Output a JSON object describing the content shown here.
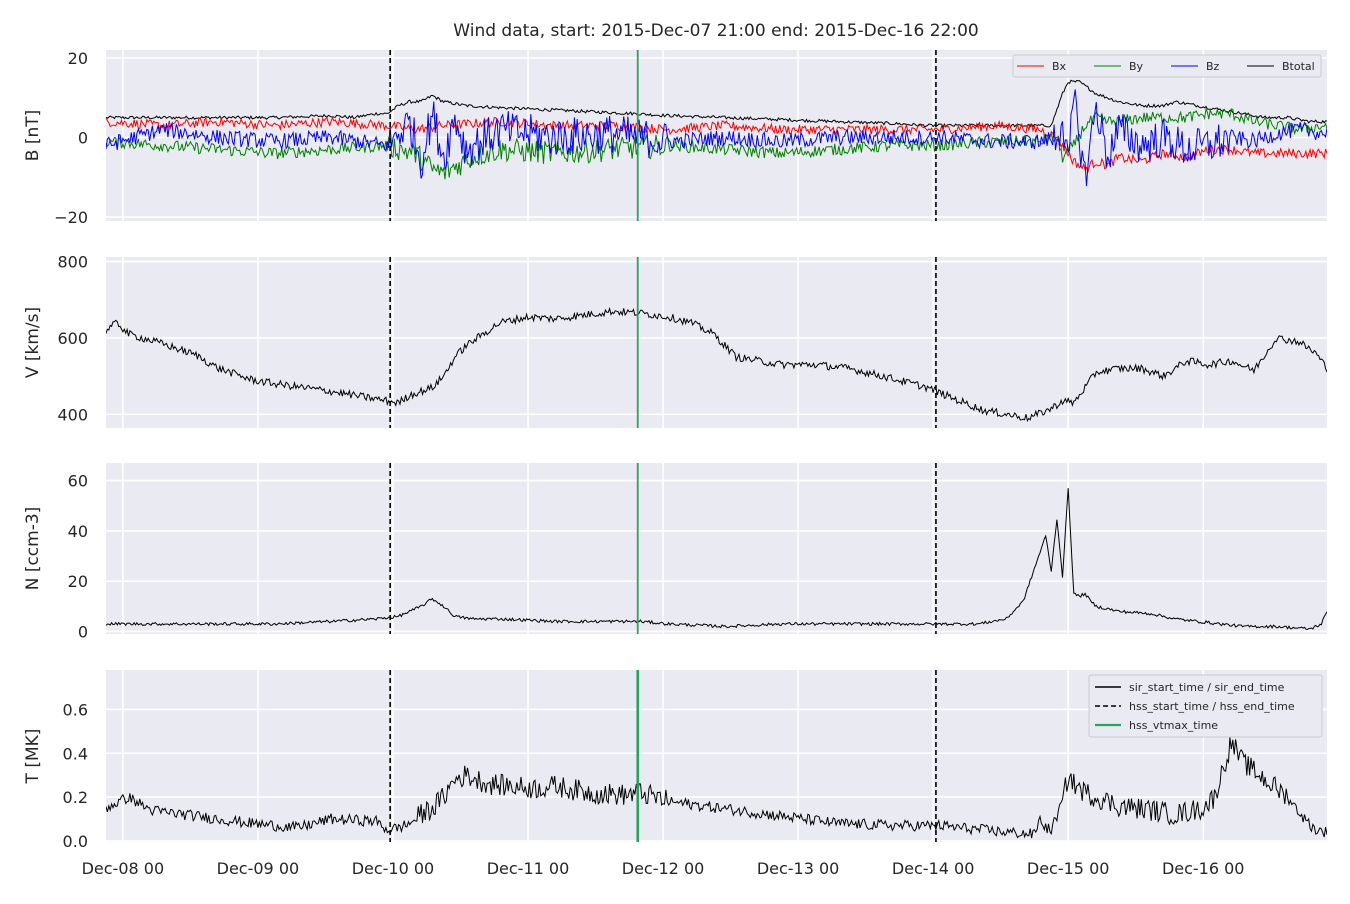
{
  "title": "Wind data, start: 2015-Dec-07 21:00  end: 2015-Dec-16 22:00",
  "colors": {
    "background": "#eaeaf2",
    "grid": "#ffffff",
    "bx": "#ff0000",
    "by": "#008000",
    "bz": "#0000ff",
    "btotal": "#000000",
    "hss_vtmax": "#2ca25f"
  },
  "chart_data": {
    "type": "line",
    "x_unit": "hours since Dec-07 21:00",
    "x_range_hours": [
      0,
      217
    ],
    "x_tick_labels": [
      "Dec-08 00",
      "Dec-09 00",
      "Dec-10 00",
      "Dec-11 00",
      "Dec-12 00",
      "Dec-13 00",
      "Dec-14 00",
      "Dec-15 00",
      "Dec-16 00"
    ],
    "x_tick_hours": [
      3,
      27,
      51,
      75,
      99,
      123,
      147,
      171,
      195
    ],
    "event_markers": {
      "hss_start_hour": 50.5,
      "hss_end_hour": 147.5,
      "hss_vtmax_hour": 94.5
    },
    "legend_lines": {
      "sir": "sir_start_time / sir_end_time",
      "hss": "hss_start_time / hss_end_time",
      "vtmax": "hss_vtmax_time"
    },
    "panels": [
      {
        "id": "B",
        "ylabel": "B [nT]",
        "ylim": [
          -21,
          22
        ],
        "yticks": [
          20,
          0,
          -20
        ],
        "ytick_labels": [
          "20",
          "0",
          "−20"
        ],
        "legend": [
          "Bx",
          "By",
          "Bz",
          "Btotal"
        ],
        "series": [
          {
            "name": "Btotal",
            "x": [
              0,
              10,
              20,
              30,
              40,
              44,
              48,
              50,
              52,
              54,
              56,
              58,
              60,
              64,
              70,
              78,
              86,
              94,
              100,
              110,
              120,
              130,
              140,
              146,
              150,
              160,
              168,
              170,
              171,
              172,
              173,
              174,
              175,
              176,
              178,
              180,
              184,
              188,
              190,
              194,
              198,
              202,
              206,
              210,
              214,
              217
            ],
            "y": [
              5,
              5,
              5,
              5,
              5.5,
              5,
              6,
              6,
              8,
              9,
              9,
              10.5,
              9,
              8,
              7.5,
              7,
              6.5,
              6,
              5.5,
              5,
              4.5,
              4,
              3.5,
              3,
              3,
              3,
              3,
              11,
              14,
              14,
              14,
              13,
              12,
              11,
              10,
              9,
              8,
              8,
              9,
              8,
              7,
              6,
              5,
              5,
              4,
              4
            ]
          },
          {
            "name": "Bx",
            "x": [
              0,
              10,
              20,
              30,
              40,
              50,
              55,
              60,
              70,
              80,
              90,
              100,
              110,
              120,
              130,
              140,
              148,
              158,
              166,
              169,
              170,
              172,
              174,
              176,
              178,
              180,
              184,
              188,
              192,
              196,
              200,
              204,
              208,
              212,
              217
            ],
            "y": [
              4,
              3,
              4,
              3,
              4,
              3,
              2,
              3,
              4,
              3,
              3,
              2,
              3,
              2,
              2,
              2,
              2,
              3,
              2,
              0,
              -2,
              -6,
              -8,
              -6,
              -7,
              -5,
              -6,
              -4,
              -5,
              -3,
              -3,
              -4,
              -4,
              -4,
              -4
            ]
          },
          {
            "name": "By",
            "x": [
              0,
              10,
              20,
              30,
              40,
              50,
              55,
              58,
              60,
              65,
              70,
              80,
              90,
              100,
              110,
              120,
              130,
              140,
              148,
              158,
              166,
              169,
              170,
              172,
              174,
              176,
              178,
              180,
              184,
              188,
              192,
              196,
              200,
              204,
              208,
              212,
              217
            ],
            "y": [
              -1,
              -2,
              -3,
              -4,
              -3,
              -2,
              -4,
              -8,
              -9,
              -5,
              -3,
              -4,
              -3,
              -2,
              -3,
              -4,
              -3,
              -2,
              -2,
              -1,
              -1,
              0,
              -5,
              -2,
              3,
              5,
              4,
              4,
              5,
              5,
              5,
              6,
              6,
              4,
              3,
              2,
              3
            ]
          },
          {
            "name": "Bz",
            "x": [
              0,
              10,
              20,
              30,
              40,
              50,
              54,
              56,
              58,
              60,
              62,
              64,
              70,
              80,
              90,
              100,
              110,
              120,
              130,
              140,
              148,
              158,
              166,
              169,
              170,
              171,
              172,
              174,
              176,
              178,
              180,
              184,
              188,
              192,
              196,
              200,
              204,
              208,
              212,
              217
            ],
            "y": [
              -2,
              2,
              0,
              -1,
              0,
              -2,
              4,
              -6,
              6,
              -5,
              5,
              -3,
              2,
              0,
              1,
              -1,
              0,
              -1,
              0,
              0,
              0,
              -1,
              -1,
              0,
              5,
              -8,
              10,
              -10,
              8,
              -5,
              2,
              -2,
              0,
              -3,
              -2,
              0,
              -1,
              1,
              2,
              1
            ]
          }
        ]
      },
      {
        "id": "V",
        "ylabel": "V [km/s]",
        "ylim": [
          364,
          812
        ],
        "yticks": [
          800,
          600,
          400
        ],
        "ytick_labels": [
          "800",
          "600",
          "400"
        ],
        "series": [
          {
            "name": "V",
            "x": [
              0,
              2,
              4,
              10,
              16,
              20,
              26,
              30,
              40,
              48,
              52,
              54,
              58,
              60,
              62,
              64,
              66,
              70,
              75,
              80,
              85,
              90,
              95,
              100,
              104,
              108,
              112,
              120,
              126,
              132,
              138,
              146,
              150,
              156,
              162,
              164,
              168,
              170,
              172,
              176,
              180,
              184,
              188,
              192,
              196,
              200,
              204,
              208,
              212,
              215,
              217
            ],
            "y": [
              620,
              640,
              610,
              585,
              555,
              520,
              490,
              480,
              460,
              440,
              430,
              450,
              470,
              500,
              550,
              580,
              600,
              640,
              655,
              650,
              660,
              670,
              665,
              655,
              640,
              610,
              550,
              530,
              530,
              520,
              500,
              470,
              445,
              410,
              395,
              390,
              415,
              435,
              430,
              510,
              520,
              520,
              500,
              540,
              530,
              540,
              515,
              600,
              590,
              560,
              520
            ]
          }
        ]
      },
      {
        "id": "N",
        "ylabel": "N [ccm-3]",
        "ylim": [
          -1,
          67
        ],
        "yticks": [
          60,
          40,
          20,
          0
        ],
        "ytick_labels": [
          "60",
          "40",
          "20",
          "0"
        ],
        "series": [
          {
            "name": "N",
            "x": [
              0,
              10,
              20,
              30,
              40,
              48,
              52,
              54,
              56,
              58,
              60,
              62,
              65,
              70,
              80,
              90,
              95,
              100,
              110,
              120,
              130,
              140,
              147,
              155,
              160,
              163,
              165,
              167,
              168,
              169,
              170,
              171,
              172,
              173,
              174,
              175,
              176,
              178,
              180,
              186,
              190,
              194,
              198,
              202,
              208,
              214,
              216,
              217
            ],
            "y": [
              3,
              3,
              3,
              3,
              4,
              5,
              6,
              8,
              10,
              13,
              10,
              6,
              5,
              5,
              4,
              4,
              4,
              3,
              2,
              3,
              3,
              3,
              3,
              3,
              5,
              12,
              25,
              38,
              24,
              45,
              22,
              57,
              15,
              14,
              15,
              12,
              10,
              9,
              8,
              7,
              5,
              4,
              3,
              2,
              2,
              1,
              3,
              8
            ]
          }
        ]
      },
      {
        "id": "T",
        "ylabel": "T [MK]",
        "ylim": [
          -0.005,
          0.78
        ],
        "yticks": [
          0.6,
          0.4,
          0.2,
          0.0
        ],
        "ytick_labels": [
          "0.6",
          "0.4",
          "0.2",
          "0.0"
        ],
        "series": [
          {
            "name": "T",
            "x": [
              0,
              4,
              8,
              14,
              20,
              26,
              34,
              40,
              48,
              50,
              52,
              54,
              56,
              58,
              60,
              62,
              64,
              68,
              72,
              76,
              80,
              86,
              92,
              95,
              100,
              106,
              112,
              118,
              124,
              130,
              140,
              148,
              156,
              160,
              165,
              166,
              167,
              168,
              170,
              171,
              172,
              174,
              178,
              180,
              186,
              190,
              195,
              197,
              200,
              202,
              206,
              210,
              213,
              215,
              217
            ],
            "y": [
              0.15,
              0.2,
              0.14,
              0.12,
              0.1,
              0.08,
              0.06,
              0.1,
              0.09,
              0.05,
              0.06,
              0.08,
              0.12,
              0.15,
              0.2,
              0.28,
              0.3,
              0.26,
              0.25,
              0.24,
              0.25,
              0.22,
              0.21,
              0.22,
              0.18,
              0.16,
              0.14,
              0.12,
              0.1,
              0.08,
              0.07,
              0.07,
              0.05,
              0.04,
              0.03,
              0.1,
              0.06,
              0.05,
              0.18,
              0.3,
              0.26,
              0.22,
              0.18,
              0.16,
              0.14,
              0.12,
              0.15,
              0.2,
              0.45,
              0.36,
              0.28,
              0.2,
              0.1,
              0.05,
              0.04
            ]
          }
        ]
      }
    ]
  }
}
